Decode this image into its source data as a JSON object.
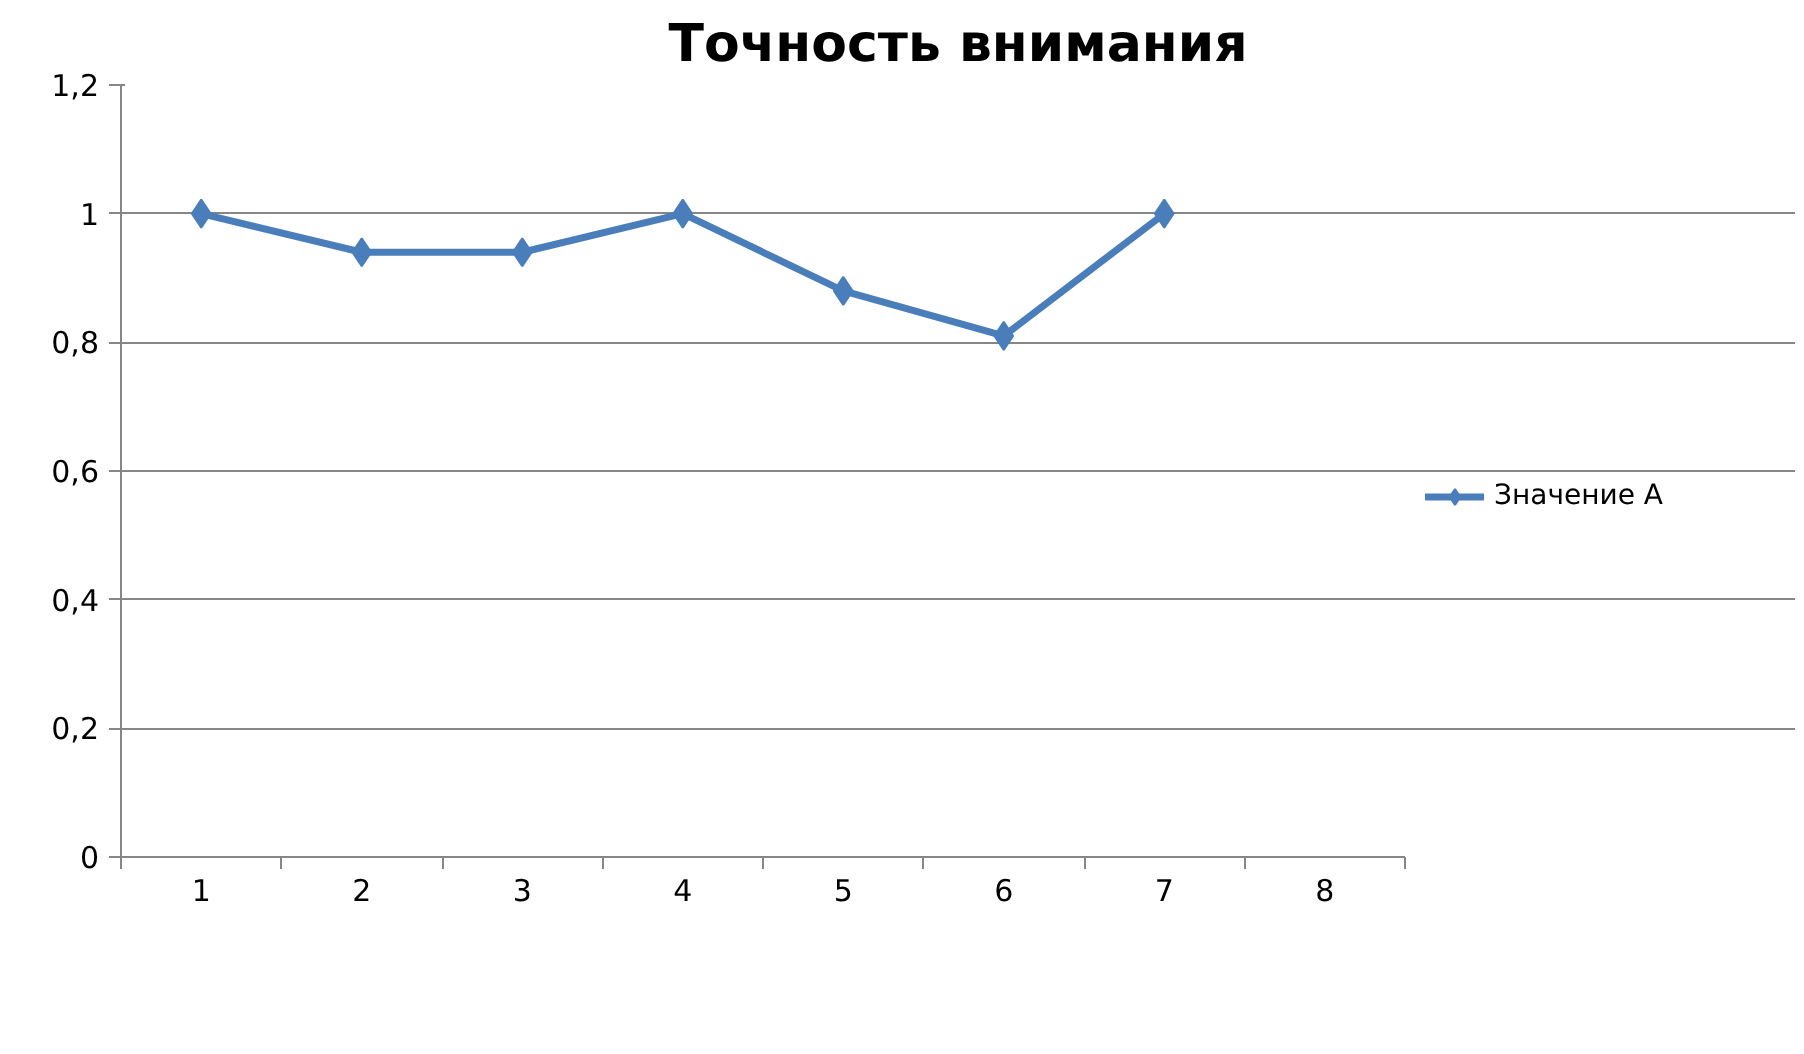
{
  "chart_data": {
    "type": "line",
    "title": "Точность внимания",
    "categories": [
      "1",
      "2",
      "3",
      "4",
      "5",
      "6",
      "7",
      "8"
    ],
    "series": [
      {
        "name": "Значение А",
        "color": "#4a7ebb",
        "values": [
          1,
          0.94,
          0.94,
          1,
          0.88,
          0.81,
          1,
          null
        ]
      }
    ],
    "ylim": [
      0,
      1.2
    ],
    "yticks": [
      0,
      {
        "value": 0.2,
        "label": "0,2"
      },
      {
        "value": 0.4,
        "label": "0,4"
      },
      {
        "value": 0.6,
        "label": "0,6"
      },
      {
        "value": 0.8,
        "label": "0,8"
      },
      1,
      {
        "value": 1.2,
        "label": "1,2"
      }
    ],
    "grid": "y",
    "legend": "right",
    "marker": "diamond",
    "line_style": "solid"
  }
}
